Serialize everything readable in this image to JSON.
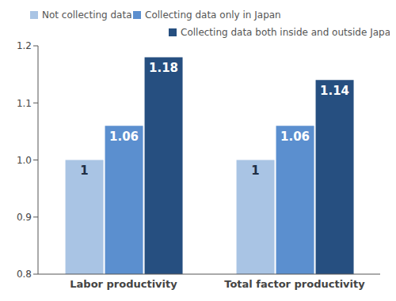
{
  "chart_data": {
    "type": "bar",
    "categories": [
      "Labor productivity",
      "Total factor productivity"
    ],
    "series": [
      {
        "name": "Not collecting data",
        "color": "#a9c4e4",
        "values": [
          1,
          1
        ]
      },
      {
        "name": "Collecting data only in Japan",
        "color": "#5b8fcf",
        "values": [
          1.06,
          1.06
        ]
      },
      {
        "name": "Collecting data both inside and outside Japan",
        "color": "#264f80",
        "values": [
          1.18,
          1.14
        ]
      }
    ],
    "ylim": [
      0.8,
      1.2
    ],
    "yticks": [
      0.8,
      0.9,
      {
        "value": 1,
        "label": "1.0"
      },
      1.1,
      1.2
    ],
    "data_labels": true,
    "legend": "top",
    "grid": false
  }
}
